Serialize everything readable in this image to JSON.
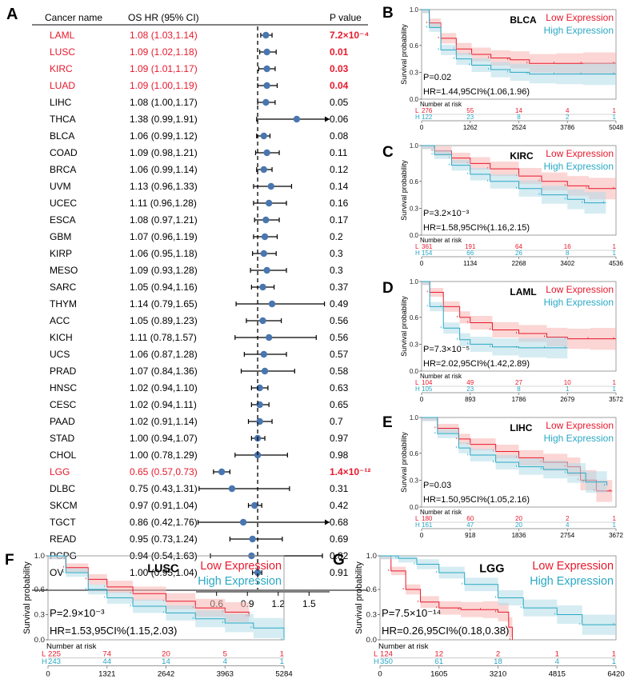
{
  "forest": {
    "panel_label": "A",
    "header_cancer": "Cancer name",
    "header_hr": "OS HR (95% CI)",
    "header_p": "P value",
    "colors": {
      "significant": "#e8192c",
      "normal": "#000000",
      "point": "#4a76b0"
    },
    "rows": [
      {
        "cancer": "LAML",
        "hr_text": "1.08 (1.03,1.14)",
        "p": "7.2×10⁻⁴",
        "sig": true,
        "hr": 1.08,
        "lo": 1.03,
        "hi": 1.14
      },
      {
        "cancer": "LUSC",
        "hr_text": "1.09 (1.02,1.18)",
        "p": "0.01",
        "sig": true,
        "hr": 1.09,
        "lo": 1.02,
        "hi": 1.18
      },
      {
        "cancer": "KIRC",
        "hr_text": "1.09 (1.01,1.17)",
        "p": "0.03",
        "sig": true,
        "hr": 1.09,
        "lo": 1.01,
        "hi": 1.17
      },
      {
        "cancer": "LUAD",
        "hr_text": "1.09 (1.00,1.19)",
        "p": "0.04",
        "sig": true,
        "hr": 1.09,
        "lo": 1.0,
        "hi": 1.19
      },
      {
        "cancer": "LIHC",
        "hr_text": "1.08 (1.00,1.17)",
        "p": "0.05",
        "sig": false,
        "hr": 1.08,
        "lo": 1.0,
        "hi": 1.17
      },
      {
        "cancer": "THCA",
        "hr_text": "1.38 (0.99,1.91)",
        "p": "0.06",
        "sig": false,
        "hr": 1.38,
        "lo": 0.99,
        "hi": 1.91
      },
      {
        "cancer": "BLCA",
        "hr_text": "1.06 (0.99,1.12)",
        "p": "0.08",
        "sig": false,
        "hr": 1.06,
        "lo": 0.99,
        "hi": 1.12
      },
      {
        "cancer": "COAD",
        "hr_text": "1.09 (0.98,1.21)",
        "p": "0.11",
        "sig": false,
        "hr": 1.09,
        "lo": 0.98,
        "hi": 1.21
      },
      {
        "cancer": "BRCA",
        "hr_text": "1.06 (0.99,1.14)",
        "p": "0.12",
        "sig": false,
        "hr": 1.06,
        "lo": 0.99,
        "hi": 1.14
      },
      {
        "cancer": "UVM",
        "hr_text": "1.13 (0.96,1.33)",
        "p": "0.14",
        "sig": false,
        "hr": 1.13,
        "lo": 0.96,
        "hi": 1.33
      },
      {
        "cancer": "UCEC",
        "hr_text": "1.11 (0.96,1.28)",
        "p": "0.16",
        "sig": false,
        "hr": 1.11,
        "lo": 0.96,
        "hi": 1.28
      },
      {
        "cancer": "ESCA",
        "hr_text": "1.08 (0.97,1.21)",
        "p": "0.17",
        "sig": false,
        "hr": 1.08,
        "lo": 0.97,
        "hi": 1.21
      },
      {
        "cancer": "GBM",
        "hr_text": "1.07 (0.96,1.19)",
        "p": "0.2",
        "sig": false,
        "hr": 1.07,
        "lo": 0.96,
        "hi": 1.19
      },
      {
        "cancer": "KIRP",
        "hr_text": "1.06 (0.95,1.18)",
        "p": "0.3",
        "sig": false,
        "hr": 1.06,
        "lo": 0.95,
        "hi": 1.18
      },
      {
        "cancer": "MESO",
        "hr_text": "1.09 (0.93,1.28)",
        "p": "0.3",
        "sig": false,
        "hr": 1.09,
        "lo": 0.93,
        "hi": 1.28
      },
      {
        "cancer": "SARC",
        "hr_text": "1.05 (0.94,1.16)",
        "p": "0.37",
        "sig": false,
        "hr": 1.05,
        "lo": 0.94,
        "hi": 1.16
      },
      {
        "cancer": "THYM",
        "hr_text": "1.14 (0.79,1.65)",
        "p": "0.49",
        "sig": false,
        "hr": 1.14,
        "lo": 0.79,
        "hi": 1.65
      },
      {
        "cancer": "ACC",
        "hr_text": "1.05 (0.89,1.23)",
        "p": "0.56",
        "sig": false,
        "hr": 1.05,
        "lo": 0.89,
        "hi": 1.23
      },
      {
        "cancer": "KICH",
        "hr_text": "1.11 (0.78,1.57)",
        "p": "0.56",
        "sig": false,
        "hr": 1.11,
        "lo": 0.78,
        "hi": 1.57
      },
      {
        "cancer": "UCS",
        "hr_text": "1.06 (0.87,1.28)",
        "p": "0.57",
        "sig": false,
        "hr": 1.06,
        "lo": 0.87,
        "hi": 1.28
      },
      {
        "cancer": "PRAD",
        "hr_text": "1.07 (0.84,1.36)",
        "p": "0.58",
        "sig": false,
        "hr": 1.07,
        "lo": 0.84,
        "hi": 1.36
      },
      {
        "cancer": "HNSC",
        "hr_text": "1.02 (0.94,1.10)",
        "p": "0.63",
        "sig": false,
        "hr": 1.02,
        "lo": 0.94,
        "hi": 1.1
      },
      {
        "cancer": "CESC",
        "hr_text": "1.02 (0.94,1.11)",
        "p": "0.65",
        "sig": false,
        "hr": 1.02,
        "lo": 0.94,
        "hi": 1.11
      },
      {
        "cancer": "PAAD",
        "hr_text": "1.02 (0.91,1.14)",
        "p": "0.7",
        "sig": false,
        "hr": 1.02,
        "lo": 0.91,
        "hi": 1.14
      },
      {
        "cancer": "STAD",
        "hr_text": "1.00 (0.94,1.07)",
        "p": "0.97",
        "sig": false,
        "hr": 1.0,
        "lo": 0.94,
        "hi": 1.07
      },
      {
        "cancer": "CHOL",
        "hr_text": "1.00 (0.78,1.29)",
        "p": "0.98",
        "sig": false,
        "hr": 1.0,
        "lo": 0.78,
        "hi": 1.29
      },
      {
        "cancer": "LGG",
        "hr_text": "0.65 (0.57,0.73)",
        "p": "1.4×10⁻¹²",
        "sig": true,
        "hr": 0.65,
        "lo": 0.57,
        "hi": 0.73
      },
      {
        "cancer": "DLBC",
        "hr_text": "0.75 (0.43,1.31)",
        "p": "0.31",
        "sig": false,
        "hr": 0.75,
        "lo": 0.43,
        "hi": 1.31
      },
      {
        "cancer": "SKCM",
        "hr_text": "0.97 (0.91,1.04)",
        "p": "0.42",
        "sig": false,
        "hr": 0.97,
        "lo": 0.91,
        "hi": 1.04
      },
      {
        "cancer": "TGCT",
        "hr_text": "0.86 (0.42,1.76)",
        "p": "0.68",
        "sig": false,
        "hr": 0.86,
        "lo": 0.42,
        "hi": 1.76
      },
      {
        "cancer": "READ",
        "hr_text": "0.95 (0.73,1.24)",
        "p": "0.69",
        "sig": false,
        "hr": 0.95,
        "lo": 0.73,
        "hi": 1.24
      },
      {
        "cancer": "PCPG",
        "hr_text": "0.94 (0.54,1.63)",
        "p": "0.82",
        "sig": false,
        "hr": 0.94,
        "lo": 0.54,
        "hi": 1.63
      },
      {
        "cancer": "OV",
        "hr_text": "1.00 (0.95,1.04)",
        "p": "0.91",
        "sig": false,
        "hr": 1.0,
        "lo": 0.95,
        "hi": 1.04
      }
    ],
    "x_ticks": [
      "0.6",
      "0.9",
      "1.2",
      "1.5"
    ],
    "x_tick_values": [
      0.6,
      0.9,
      1.2,
      1.5
    ],
    "x_range": [
      0.4,
      1.7
    ],
    "reference_line": 1.0
  },
  "km_common": {
    "ylabel": "Survival probability",
    "low_label": "Low Expression",
    "high_label": "High Expression",
    "risk_title": "Number at risk",
    "low_prefix": "L",
    "high_prefix": "H",
    "yticks": [
      "1.0",
      "0.6",
      "0.3",
      "0.0"
    ],
    "ytick_values": [
      1.0,
      0.6,
      0.3,
      0.0
    ],
    "low_color": "#e8192c",
    "high_color": "#2aa8c4",
    "low_fill": "#f7b5b0",
    "high_fill": "#b3dde7"
  },
  "chart_data": [
    {
      "type": "line",
      "panel": "B",
      "cancer": "BLCA",
      "p_text": "P=0.02",
      "hr_text": "HR=1.44,95CI%(1.06,1.96)",
      "x_ticks": [
        "0",
        "1262",
        "2524",
        "3786",
        "5048"
      ],
      "xlim": [
        0,
        5048
      ],
      "ylim": [
        0,
        1
      ],
      "risk_low": [
        "276",
        "55",
        "14",
        "4",
        "1"
      ],
      "risk_high": [
        "122",
        "23",
        "8",
        "2",
        "1"
      ],
      "series": [
        {
          "name": "Low Expression",
          "x": [
            0,
            200,
            500,
            900,
            1300,
            1800,
            2300,
            2800,
            3500,
            4200,
            5048
          ],
          "y": [
            1.0,
            0.85,
            0.68,
            0.56,
            0.5,
            0.46,
            0.44,
            0.4,
            0.4,
            0.4,
            0.4
          ]
        },
        {
          "name": "High Expression",
          "x": [
            0,
            200,
            500,
            900,
            1300,
            1800,
            2300,
            2800,
            3500,
            4200,
            5048
          ],
          "y": [
            1.0,
            0.8,
            0.55,
            0.45,
            0.38,
            0.33,
            0.3,
            0.28,
            0.28,
            0.28,
            0.28
          ]
        }
      ]
    },
    {
      "type": "line",
      "panel": "C",
      "cancer": "KIRC",
      "p_text": "P=3.2×10⁻³",
      "hr_text": "HR=1.58,95CI%(1.16,2.15)",
      "x_ticks": [
        "0",
        "1134",
        "2268",
        "3402",
        "4536"
      ],
      "xlim": [
        0,
        4536
      ],
      "ylim": [
        0,
        1
      ],
      "risk_low": [
        "361",
        "191",
        "64",
        "16",
        "1"
      ],
      "risk_high": [
        "154",
        "66",
        "26",
        "8",
        "1"
      ],
      "series": [
        {
          "name": "Low Expression",
          "x": [
            0,
            300,
            700,
            1134,
            1600,
            2268,
            2800,
            3402,
            3900,
            4536
          ],
          "y": [
            1.0,
            0.94,
            0.86,
            0.8,
            0.74,
            0.66,
            0.6,
            0.55,
            0.52,
            0.52
          ]
        },
        {
          "name": "High Expression",
          "x": [
            0,
            300,
            700,
            1134,
            1600,
            2268,
            2800,
            3402,
            3800,
            4300
          ],
          "y": [
            1.0,
            0.9,
            0.78,
            0.68,
            0.6,
            0.52,
            0.45,
            0.4,
            0.36,
            0.36
          ]
        }
      ]
    },
    {
      "type": "line",
      "panel": "D",
      "cancer": "LAML",
      "p_text": "P=7.3×10⁻⁵",
      "hr_text": "HR=2.02,95CI%(1.42,2.89)",
      "x_ticks": [
        "0",
        "893",
        "1786",
        "2679",
        "3572"
      ],
      "xlim": [
        0,
        3572
      ],
      "ylim": [
        0,
        1
      ],
      "risk_low": [
        "104",
        "49",
        "27",
        "10",
        "1"
      ],
      "risk_high": [
        "105",
        "23",
        "8",
        "1",
        "1"
      ],
      "series": [
        {
          "name": "Low Expression",
          "x": [
            0,
            150,
            400,
            700,
            893,
            1300,
            1786,
            2300,
            2679,
            3100,
            3572
          ],
          "y": [
            1.0,
            0.88,
            0.72,
            0.6,
            0.54,
            0.46,
            0.42,
            0.38,
            0.36,
            0.36,
            0.36
          ]
        },
        {
          "name": "High Expression",
          "x": [
            0,
            150,
            400,
            700,
            893,
            1300,
            1786,
            2300,
            2679
          ],
          "y": [
            1.0,
            0.72,
            0.48,
            0.35,
            0.3,
            0.27,
            0.26,
            0.26,
            0.26
          ]
        }
      ]
    },
    {
      "type": "line",
      "panel": "E",
      "cancer": "LIHC",
      "p_text": "P=0.03",
      "hr_text": "HR=1.50,95CI%(1.05,2.16)",
      "x_ticks": [
        "0",
        "918",
        "1836",
        "2754",
        "3672"
      ],
      "xlim": [
        0,
        3672
      ],
      "ylim": [
        0,
        1
      ],
      "risk_low": [
        "180",
        "60",
        "20",
        "2",
        "1"
      ],
      "risk_high": [
        "161",
        "47",
        "20",
        "4",
        "1"
      ],
      "series": [
        {
          "name": "Low Expression",
          "x": [
            0,
            300,
            700,
            918,
            1400,
            1836,
            2300,
            2754,
            3000,
            3300,
            3600
          ],
          "y": [
            1.0,
            0.88,
            0.76,
            0.7,
            0.62,
            0.55,
            0.5,
            0.45,
            0.3,
            0.18,
            0.18
          ]
        },
        {
          "name": "High Expression",
          "x": [
            0,
            300,
            700,
            918,
            1400,
            1836,
            2300,
            2754,
            3100,
            3500
          ],
          "y": [
            1.0,
            0.82,
            0.66,
            0.58,
            0.5,
            0.45,
            0.42,
            0.38,
            0.28,
            0.24
          ]
        }
      ]
    },
    {
      "type": "line",
      "panel": "F",
      "cancer": "LUSC",
      "p_text": "P=2.9×10⁻³",
      "hr_text": "HR=1.53,95CI%(1.15,2.03)",
      "x_ticks": [
        "0",
        "1321",
        "2642",
        "3963",
        "5284"
      ],
      "xlim": [
        0,
        5284
      ],
      "ylim": [
        0,
        1
      ],
      "risk_low": [
        "225",
        "74",
        "20",
        "5",
        "1"
      ],
      "risk_high": [
        "243",
        "44",
        "14",
        "4",
        "1"
      ],
      "series": [
        {
          "name": "Low Expression",
          "x": [
            0,
            400,
            900,
            1321,
            1900,
            2642,
            3300,
            3963,
            4500
          ],
          "y": [
            1.0,
            0.86,
            0.72,
            0.63,
            0.55,
            0.46,
            0.38,
            0.33,
            0.28
          ]
        },
        {
          "name": "High Expression",
          "x": [
            0,
            400,
            900,
            1321,
            1900,
            2642,
            3300,
            3963,
            4600,
            5284
          ],
          "y": [
            1.0,
            0.8,
            0.6,
            0.5,
            0.4,
            0.32,
            0.25,
            0.2,
            0.14,
            0.0
          ]
        }
      ]
    },
    {
      "type": "line",
      "panel": "G",
      "cancer": "LGG",
      "p_text": "P=7.5×10⁻¹⁴",
      "hr_text": "HR=0.26,95CI%(0.18,0.38)",
      "x_ticks": [
        "0",
        "1605",
        "3210",
        "4815",
        "6420"
      ],
      "xlim": [
        0,
        6420
      ],
      "ylim": [
        0,
        1
      ],
      "risk_low": [
        "124",
        "12",
        "2",
        "1",
        "1"
      ],
      "risk_high": [
        "350",
        "61",
        "18",
        "4",
        "1"
      ],
      "series": [
        {
          "name": "Low Expression",
          "x": [
            0,
            300,
            700,
            1100,
            1605,
            2200,
            2800,
            3210,
            3500,
            3600
          ],
          "y": [
            1.0,
            0.82,
            0.6,
            0.45,
            0.38,
            0.36,
            0.36,
            0.33,
            0.15,
            0.0
          ]
        },
        {
          "name": "High Expression",
          "x": [
            0,
            500,
            1000,
            1605,
            2300,
            3210,
            3900,
            4815,
            5500,
            6420
          ],
          "y": [
            1.0,
            0.97,
            0.9,
            0.8,
            0.66,
            0.5,
            0.38,
            0.3,
            0.18,
            0.18
          ]
        }
      ]
    }
  ]
}
